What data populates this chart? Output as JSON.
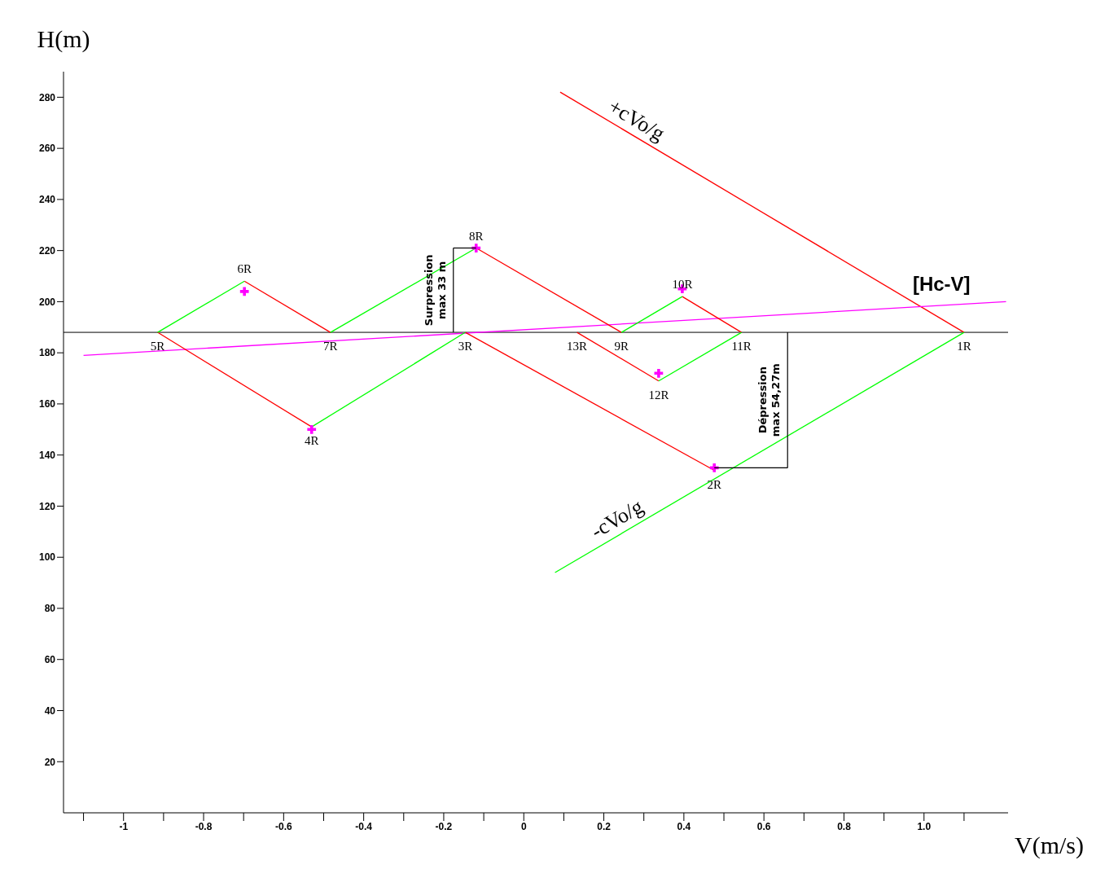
{
  "chart_data": {
    "type": "line",
    "xlabel": "V(m/s)",
    "ylabel": "H(m)",
    "xlim": [
      -1.15,
      1.21
    ],
    "ylim": [
      0,
      290
    ],
    "xticks": [
      {
        "value": -1.1,
        "label": null
      },
      -1,
      {
        "value": -0.9,
        "label": null
      },
      -0.8,
      {
        "value": -0.7,
        "label": null
      },
      -0.6,
      {
        "value": -0.5,
        "label": null
      },
      -0.4,
      {
        "value": -0.3,
        "label": null
      },
      -0.2,
      {
        "value": -0.1,
        "label": null
      },
      0,
      {
        "value": 0.1,
        "label": null
      },
      0.2,
      {
        "value": 0.3,
        "label": null
      },
      0.4,
      {
        "value": 0.5,
        "label": null
      },
      0.6,
      {
        "value": 0.7,
        "label": null
      },
      0.8,
      {
        "value": 0.9,
        "label": null
      },
      {
        "value": 1,
        "label": "1.0"
      },
      {
        "value": 1.1,
        "label": null
      }
    ],
    "yticks": [
      20,
      40,
      60,
      80,
      100,
      120,
      140,
      160,
      180,
      200,
      220,
      240,
      260,
      280
    ],
    "series": [
      {
        "name": "+cVo/g",
        "color": "#ff0000",
        "x": [
          0.091,
          1.1
        ],
        "values": [
          282,
          188
        ]
      },
      {
        "name": "-cVo/g",
        "color": "#00ff00",
        "x": [
          0.078,
          1.1
        ],
        "values": [
          94,
          188
        ]
      },
      {
        "name": "[Hc-V]",
        "color": "#ff00ff",
        "x": [
          -1.1,
          1.205
        ],
        "values": [
          179,
          200
        ]
      },
      {
        "color": "#ff0000",
        "x": [
          0.476,
          -0.146
        ],
        "values": [
          134,
          188
        ]
      },
      {
        "color": "#ff0000",
        "x": [
          -0.53,
          -0.915
        ],
        "values": [
          151,
          188
        ]
      },
      {
        "color": "#ff0000",
        "x": [
          -0.698,
          -0.483
        ],
        "values": [
          208,
          188
        ]
      },
      {
        "color": "#ff0000",
        "x": [
          -0.119,
          0.244
        ],
        "values": [
          221,
          188
        ]
      },
      {
        "color": "#ff0000",
        "x": [
          0.396,
          0.544
        ],
        "values": [
          202,
          188
        ]
      },
      {
        "color": "#ff0000",
        "x": [
          0.337,
          0.133
        ],
        "values": [
          169,
          188
        ]
      },
      {
        "color": "#00ff00",
        "x": [
          -0.146,
          -0.53
        ],
        "values": [
          188,
          151
        ]
      },
      {
        "color": "#00ff00",
        "x": [
          -0.915,
          -0.698
        ],
        "values": [
          188,
          208
        ]
      },
      {
        "color": "#00ff00",
        "x": [
          -0.483,
          -0.119
        ],
        "values": [
          188,
          221
        ]
      },
      {
        "color": "#00ff00",
        "x": [
          0.244,
          0.396
        ],
        "values": [
          188,
          202
        ]
      },
      {
        "color": "#00ff00",
        "x": [
          0.544,
          0.337
        ],
        "values": [
          188,
          169
        ]
      },
      {
        "type": "scatter",
        "marker": "cross",
        "color": "#ff00ff",
        "x": [
          -0.698,
          -0.119,
          0.396,
          0.337,
          -0.53,
          0.476
        ],
        "values": [
          204,
          221,
          205,
          172,
          150,
          135
        ]
      }
    ],
    "ref_lines": [
      {
        "axis": "y",
        "value": 188,
        "color": "#000000"
      }
    ],
    "annotations": [
      {
        "text": "1R",
        "x": 1.1,
        "y": 188
      },
      {
        "text": "2R",
        "x": 0.476,
        "y": 134
      },
      {
        "text": "3R",
        "x": -0.146,
        "y": 188
      },
      {
        "text": "4R",
        "x": -0.53,
        "y": 151
      },
      {
        "text": "5R",
        "x": -0.915,
        "y": 188
      },
      {
        "text": "6R",
        "x": -0.698,
        "y": 208
      },
      {
        "text": "7R",
        "x": -0.483,
        "y": 188
      },
      {
        "text": "8R",
        "x": -0.119,
        "y": 221
      },
      {
        "text": "9R",
        "x": 0.244,
        "y": 188
      },
      {
        "text": "10R",
        "x": 0.396,
        "y": 202
      },
      {
        "text": "11R",
        "x": 0.544,
        "y": 188
      },
      {
        "text": "12R",
        "x": 0.337,
        "y": 169
      },
      {
        "text": "13R",
        "x": 0.133,
        "y": 188
      },
      "Surpression max 33 m",
      "Dépression max 54,27m"
    ]
  }
}
